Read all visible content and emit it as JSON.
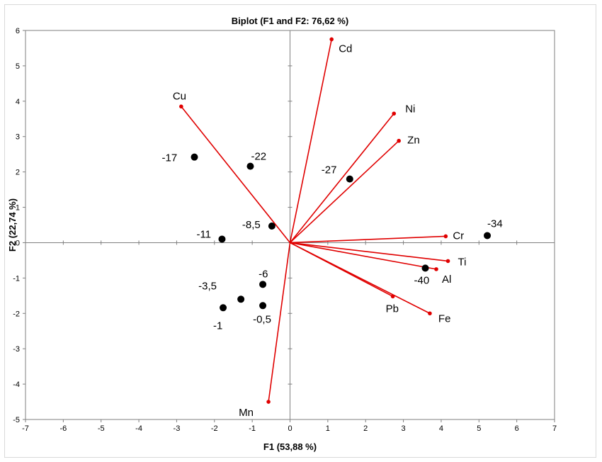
{
  "chart_data": {
    "type": "scatter",
    "title": "Biplot (F1 and F2: 76,62 %)",
    "xlabel": "F1 (53,88 %)",
    "ylabel": "F2 (22,74 %)",
    "xlim": [
      -7,
      7
    ],
    "ylim": [
      -5,
      6
    ],
    "x_ticks": [
      "-7",
      "-6",
      "-5",
      "-4",
      "-3",
      "-2",
      "-1",
      "0",
      "1",
      "2",
      "3",
      "4",
      "5",
      "6",
      "7"
    ],
    "y_ticks": [
      "-5",
      "-4",
      "-3",
      "-2",
      "-1",
      "0",
      "1",
      "2",
      "3",
      "4",
      "5",
      "6"
    ],
    "grid": false,
    "colors": {
      "variables": "#e00000",
      "observations": "#000000"
    },
    "variables": [
      {
        "label": "Cd",
        "x": 1.1,
        "y": 5.75
      },
      {
        "label": "Cu",
        "x": -2.88,
        "y": 3.85
      },
      {
        "label": "Ni",
        "x": 2.75,
        "y": 3.65
      },
      {
        "label": "Zn",
        "x": 2.88,
        "y": 2.88
      },
      {
        "label": "Cr",
        "x": 4.12,
        "y": 0.18
      },
      {
        "label": "Ti",
        "x": 4.18,
        "y": -0.52
      },
      {
        "label": "Al",
        "x": 3.87,
        "y": -0.75
      },
      {
        "label": "Pb",
        "x": 2.72,
        "y": -1.52
      },
      {
        "label": "Fe",
        "x": 3.7,
        "y": -2.0
      },
      {
        "label": "Mn",
        "x": -0.57,
        "y": -4.5
      }
    ],
    "observations": [
      {
        "label": "-17",
        "x": -2.53,
        "y": 2.42
      },
      {
        "label": "-22",
        "x": -1.05,
        "y": 2.16
      },
      {
        "label": "-27",
        "x": 1.58,
        "y": 1.8
      },
      {
        "label": "-8,5",
        "x": -0.48,
        "y": 0.47
      },
      {
        "label": "-11",
        "x": -1.8,
        "y": 0.1
      },
      {
        "label": "-34",
        "x": 5.22,
        "y": 0.2
      },
      {
        "label": "-40",
        "x": 3.58,
        "y": -0.72
      },
      {
        "label": "-6",
        "x": -0.72,
        "y": -1.18
      },
      {
        "label": "-3,5",
        "x": -1.3,
        "y": -1.6
      },
      {
        "label": "-0,5",
        "x": -0.72,
        "y": -1.78
      },
      {
        "label": "-1",
        "x": -1.77,
        "y": -1.84
      }
    ]
  }
}
